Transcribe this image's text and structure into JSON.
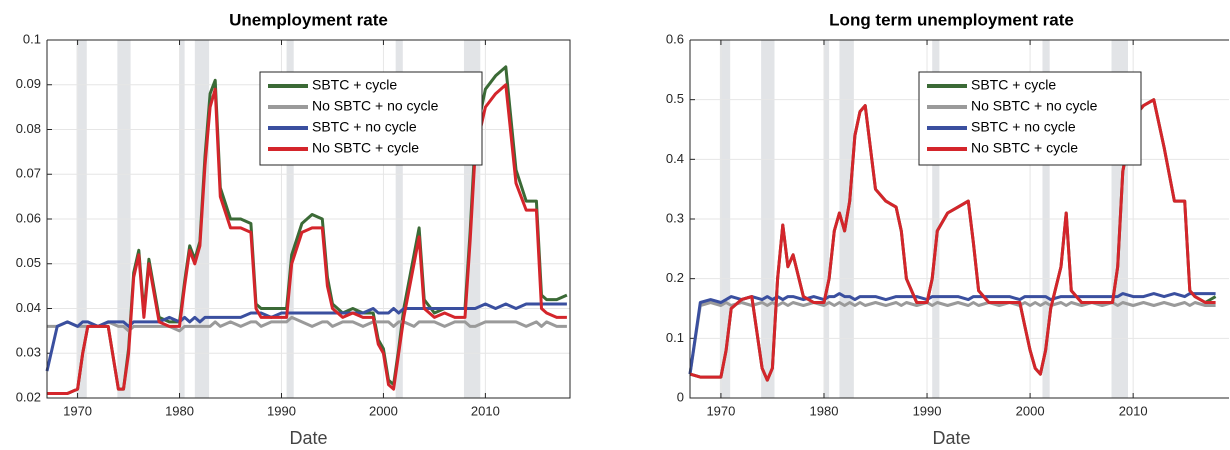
{
  "chart_data": [
    {
      "type": "line",
      "title": "Unemployment rate",
      "xlabel": "Date",
      "x": [
        1967,
        1968,
        1969,
        1970,
        1970.5,
        1971,
        1972,
        1973,
        1974,
        1974.5,
        1975,
        1975.5,
        1976,
        1976.5,
        1977,
        1978,
        1979,
        1980,
        1980.5,
        1981,
        1981.5,
        1982,
        1982.5,
        1983,
        1983.5,
        1984,
        1985,
        1986,
        1987,
        1987.5,
        1988,
        1989,
        1990,
        1990.5,
        1991,
        1992,
        1993,
        1994,
        1994.5,
        1995,
        1996,
        1997,
        1998,
        1999,
        1999.5,
        2000,
        2000.5,
        2001,
        2001.5,
        2002,
        2003,
        2003.5,
        2004,
        2005,
        2006,
        2007,
        2008,
        2008.5,
        2009,
        2010,
        2011,
        2012,
        2013,
        2014,
        2015,
        2015.5,
        2016,
        2017,
        2018
      ],
      "series": [
        {
          "name": "SBTC + cycle",
          "color": "#3b6a36",
          "values": [
            0.021,
            0.021,
            0.021,
            0.022,
            0.03,
            0.036,
            0.036,
            0.036,
            0.022,
            0.022,
            0.031,
            0.048,
            0.053,
            0.039,
            0.051,
            0.038,
            0.037,
            0.037,
            0.046,
            0.054,
            0.051,
            0.055,
            0.074,
            0.088,
            0.091,
            0.067,
            0.06,
            0.06,
            0.059,
            0.041,
            0.04,
            0.04,
            0.04,
            0.04,
            0.052,
            0.059,
            0.061,
            0.06,
            0.047,
            0.041,
            0.039,
            0.04,
            0.039,
            0.039,
            0.033,
            0.031,
            0.024,
            0.023,
            0.031,
            0.04,
            0.052,
            0.058,
            0.042,
            0.039,
            0.04,
            0.04,
            0.04,
            0.057,
            0.078,
            0.089,
            0.092,
            0.094,
            0.071,
            0.064,
            0.064,
            0.043,
            0.042,
            0.042,
            0.043
          ]
        },
        {
          "name": "No SBTC + no cycle",
          "color": "#9a9a9a",
          "values": [
            0.036,
            0.036,
            0.037,
            0.036,
            0.036,
            0.036,
            0.036,
            0.037,
            0.036,
            0.036,
            0.035,
            0.036,
            0.036,
            0.036,
            0.036,
            0.036,
            0.036,
            0.035,
            0.036,
            0.036,
            0.036,
            0.036,
            0.036,
            0.036,
            0.037,
            0.036,
            0.037,
            0.036,
            0.037,
            0.037,
            0.036,
            0.037,
            0.037,
            0.037,
            0.038,
            0.037,
            0.036,
            0.037,
            0.037,
            0.036,
            0.037,
            0.037,
            0.036,
            0.037,
            0.037,
            0.037,
            0.037,
            0.036,
            0.037,
            0.037,
            0.036,
            0.037,
            0.037,
            0.037,
            0.036,
            0.037,
            0.037,
            0.036,
            0.036,
            0.037,
            0.037,
            0.037,
            0.037,
            0.036,
            0.037,
            0.036,
            0.037,
            0.036,
            0.036
          ]
        },
        {
          "name": "SBTC + no cycle",
          "color": "#3a4f9f",
          "values": [
            0.026,
            0.036,
            0.037,
            0.036,
            0.037,
            0.037,
            0.036,
            0.037,
            0.037,
            0.037,
            0.036,
            0.037,
            0.037,
            0.037,
            0.037,
            0.037,
            0.038,
            0.037,
            0.038,
            0.037,
            0.038,
            0.037,
            0.038,
            0.038,
            0.038,
            0.038,
            0.038,
            0.038,
            0.039,
            0.039,
            0.039,
            0.038,
            0.039,
            0.039,
            0.039,
            0.039,
            0.039,
            0.039,
            0.039,
            0.039,
            0.039,
            0.039,
            0.039,
            0.04,
            0.039,
            0.039,
            0.039,
            0.04,
            0.039,
            0.04,
            0.04,
            0.04,
            0.04,
            0.04,
            0.04,
            0.04,
            0.04,
            0.04,
            0.04,
            0.041,
            0.04,
            0.041,
            0.04,
            0.041,
            0.041,
            0.041,
            0.041,
            0.041,
            0.041
          ]
        },
        {
          "name": "No SBTC + cycle",
          "color": "#d4252b",
          "values": [
            0.021,
            0.021,
            0.021,
            0.022,
            0.03,
            0.036,
            0.036,
            0.036,
            0.022,
            0.022,
            0.03,
            0.047,
            0.052,
            0.038,
            0.05,
            0.037,
            0.036,
            0.036,
            0.045,
            0.053,
            0.05,
            0.054,
            0.072,
            0.085,
            0.089,
            0.065,
            0.058,
            0.058,
            0.057,
            0.04,
            0.038,
            0.038,
            0.038,
            0.038,
            0.05,
            0.057,
            0.058,
            0.058,
            0.045,
            0.04,
            0.038,
            0.039,
            0.038,
            0.038,
            0.032,
            0.03,
            0.023,
            0.022,
            0.03,
            0.038,
            0.05,
            0.056,
            0.04,
            0.038,
            0.039,
            0.038,
            0.038,
            0.055,
            0.075,
            0.085,
            0.088,
            0.09,
            0.068,
            0.062,
            0.062,
            0.04,
            0.039,
            0.038,
            0.038
          ]
        }
      ],
      "shaded_periods": [
        [
          1969.9,
          1970.9
        ],
        [
          1973.9,
          1975.2
        ],
        [
          1980.0,
          1980.5
        ],
        [
          1981.5,
          1982.9
        ],
        [
          1990.5,
          1991.2
        ],
        [
          2001.2,
          2001.9
        ],
        [
          2007.9,
          2009.5
        ]
      ],
      "xlim": [
        1967,
        2018.3
      ],
      "ylim": [
        0.02,
        0.1
      ],
      "xticks": [
        1970,
        1980,
        1990,
        2000,
        2010
      ],
      "yticks": [
        0.02,
        0.03,
        0.04,
        0.05,
        0.06,
        0.07,
        0.08,
        0.09,
        0.1
      ],
      "grid": true,
      "legend": "upper right"
    },
    {
      "type": "line",
      "title": "Long term unemployment rate",
      "xlabel": "Date",
      "x": [
        1967,
        1968,
        1969,
        1970,
        1970.5,
        1971,
        1972,
        1973,
        1974,
        1974.5,
        1975,
        1975.5,
        1976,
        1976.5,
        1977,
        1978,
        1979,
        1980,
        1980.5,
        1981,
        1981.5,
        1982,
        1982.5,
        1983,
        1983.5,
        1984,
        1985,
        1986,
        1987,
        1987.5,
        1988,
        1989,
        1990,
        1990.5,
        1991,
        1992,
        1993,
        1994,
        1994.5,
        1995,
        1996,
        1997,
        1998,
        1999,
        1999.5,
        2000,
        2000.5,
        2001,
        2001.5,
        2002,
        2003,
        2003.5,
        2004,
        2005,
        2006,
        2007,
        2008,
        2008.5,
        2009,
        2010,
        2011,
        2012,
        2013,
        2014,
        2015,
        2015.5,
        2016,
        2017,
        2018
      ],
      "series": [
        {
          "name": "SBTC + cycle",
          "color": "#3b6a36",
          "values": [
            0.04,
            0.035,
            0.035,
            0.035,
            0.08,
            0.15,
            0.165,
            0.17,
            0.05,
            0.03,
            0.05,
            0.2,
            0.29,
            0.22,
            0.24,
            0.17,
            0.16,
            0.16,
            0.2,
            0.28,
            0.31,
            0.28,
            0.33,
            0.44,
            0.48,
            0.49,
            0.35,
            0.33,
            0.32,
            0.28,
            0.2,
            0.16,
            0.16,
            0.2,
            0.28,
            0.31,
            0.32,
            0.33,
            0.26,
            0.18,
            0.16,
            0.16,
            0.16,
            0.16,
            0.12,
            0.08,
            0.05,
            0.04,
            0.08,
            0.15,
            0.22,
            0.31,
            0.18,
            0.16,
            0.16,
            0.16,
            0.16,
            0.22,
            0.38,
            0.47,
            0.49,
            0.5,
            0.42,
            0.33,
            0.33,
            0.18,
            0.17,
            0.16,
            0.17
          ]
        },
        {
          "name": "No SBTC + no cycle",
          "color": "#9a9a9a",
          "values": [
            0.04,
            0.155,
            0.16,
            0.155,
            0.16,
            0.155,
            0.16,
            0.155,
            0.16,
            0.155,
            0.16,
            0.155,
            0.16,
            0.155,
            0.16,
            0.155,
            0.16,
            0.155,
            0.16,
            0.155,
            0.16,
            0.155,
            0.16,
            0.155,
            0.16,
            0.155,
            0.16,
            0.155,
            0.16,
            0.155,
            0.16,
            0.155,
            0.16,
            0.155,
            0.16,
            0.155,
            0.16,
            0.155,
            0.16,
            0.155,
            0.16,
            0.155,
            0.16,
            0.155,
            0.16,
            0.155,
            0.16,
            0.155,
            0.16,
            0.155,
            0.16,
            0.155,
            0.16,
            0.155,
            0.16,
            0.155,
            0.16,
            0.155,
            0.16,
            0.155,
            0.16,
            0.155,
            0.16,
            0.155,
            0.16,
            0.155,
            0.16,
            0.155,
            0.155
          ]
        },
        {
          "name": "SBTC + no cycle",
          "color": "#3a4f9f",
          "values": [
            0.04,
            0.16,
            0.165,
            0.16,
            0.165,
            0.17,
            0.165,
            0.17,
            0.165,
            0.17,
            0.165,
            0.17,
            0.165,
            0.17,
            0.17,
            0.165,
            0.17,
            0.165,
            0.17,
            0.17,
            0.175,
            0.17,
            0.17,
            0.165,
            0.17,
            0.17,
            0.17,
            0.165,
            0.17,
            0.17,
            0.17,
            0.17,
            0.165,
            0.17,
            0.17,
            0.17,
            0.17,
            0.165,
            0.17,
            0.17,
            0.17,
            0.17,
            0.17,
            0.165,
            0.17,
            0.17,
            0.17,
            0.17,
            0.17,
            0.165,
            0.17,
            0.17,
            0.17,
            0.17,
            0.17,
            0.17,
            0.17,
            0.17,
            0.175,
            0.17,
            0.17,
            0.175,
            0.17,
            0.175,
            0.17,
            0.175,
            0.175,
            0.175,
            0.175
          ]
        },
        {
          "name": "No SBTC + cycle",
          "color": "#d4252b",
          "values": [
            0.04,
            0.035,
            0.035,
            0.035,
            0.08,
            0.15,
            0.165,
            0.17,
            0.05,
            0.03,
            0.05,
            0.2,
            0.29,
            0.22,
            0.24,
            0.17,
            0.16,
            0.16,
            0.2,
            0.28,
            0.31,
            0.28,
            0.33,
            0.44,
            0.48,
            0.49,
            0.35,
            0.33,
            0.32,
            0.28,
            0.2,
            0.16,
            0.16,
            0.2,
            0.28,
            0.31,
            0.32,
            0.33,
            0.26,
            0.18,
            0.16,
            0.16,
            0.16,
            0.16,
            0.12,
            0.08,
            0.05,
            0.04,
            0.08,
            0.15,
            0.22,
            0.31,
            0.18,
            0.16,
            0.16,
            0.16,
            0.16,
            0.22,
            0.38,
            0.47,
            0.49,
            0.5,
            0.42,
            0.33,
            0.33,
            0.18,
            0.17,
            0.16,
            0.16
          ]
        }
      ],
      "shaded_periods": [
        [
          1969.9,
          1970.9
        ],
        [
          1973.9,
          1975.2
        ],
        [
          1980.0,
          1980.5
        ],
        [
          1981.5,
          1982.9
        ],
        [
          1990.5,
          1991.2
        ],
        [
          2001.2,
          2001.9
        ],
        [
          2007.9,
          2009.5
        ]
      ],
      "xlim": [
        1967,
        2019.3
      ],
      "ylim": [
        0,
        0.6
      ],
      "xticks": [
        1970,
        1980,
        1990,
        2000,
        2010
      ],
      "yticks": [
        0,
        0.1,
        0.2,
        0.3,
        0.4,
        0.5,
        0.6
      ],
      "grid": true,
      "legend": "upper right"
    }
  ]
}
